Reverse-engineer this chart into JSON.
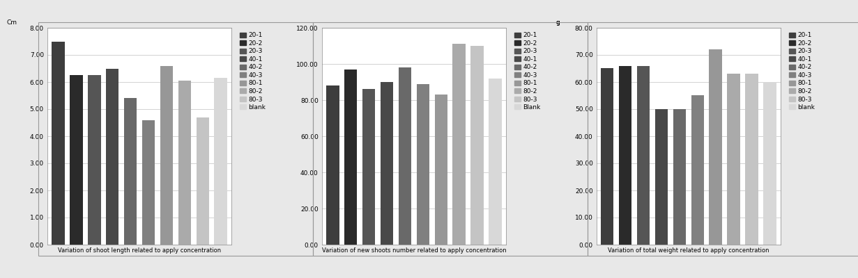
{
  "chart1": {
    "title": "Variation of shoot length related to apply concentration",
    "ylabel": "Cm",
    "ylim": [
      0,
      8.0
    ],
    "yticks": [
      0.0,
      1.0,
      2.0,
      3.0,
      4.0,
      5.0,
      6.0,
      7.0,
      8.0
    ],
    "ytick_labels": [
      "0.00",
      "1.00",
      "2.00",
      "3.00",
      "4.00",
      "5.00",
      "6.00",
      "7.00",
      "8.00"
    ],
    "bar_values": [
      7.5,
      6.25,
      6.25,
      6.5,
      5.4,
      4.6,
      6.6,
      6.05,
      4.7,
      6.15
    ]
  },
  "chart2": {
    "title": "Variation of new shoots number related to apply concentration",
    "ylim": [
      0,
      120.0
    ],
    "yticks": [
      0.0,
      20.0,
      40.0,
      60.0,
      80.0,
      100.0,
      120.0
    ],
    "ytick_labels": [
      "0.00",
      "20.00",
      "40.00",
      "60.00",
      "80.00",
      "100.00",
      "120.00"
    ],
    "bar_values": [
      88,
      97,
      86,
      90,
      98,
      89,
      83,
      111,
      110,
      92
    ],
    "legend_labels": [
      "20-1",
      "20-2",
      "20-3",
      "40-1",
      "40-2",
      "40-3",
      "80-1",
      "80-2",
      "80-3",
      "Blank"
    ]
  },
  "chart3": {
    "title": "Variation of total weight related to apply concentration",
    "ylabel": "g",
    "ylim": [
      0,
      80.0
    ],
    "yticks": [
      0.0,
      10.0,
      20.0,
      30.0,
      40.0,
      50.0,
      60.0,
      70.0,
      80.0
    ],
    "ytick_labels": [
      "0.00",
      "10.00",
      "20.00",
      "30.00",
      "40.00",
      "50.00",
      "60.00",
      "70.00",
      "80.00"
    ],
    "bar_values": [
      65,
      66,
      66,
      50,
      50,
      55,
      72,
      63,
      63,
      60
    ],
    "legend_labels": [
      "20-1",
      "20-2",
      "20-3",
      "40-1",
      "40-2",
      "40-3",
      "80-1",
      "80-2",
      "80-3",
      "blank"
    ]
  },
  "legend_labels": [
    "20-1",
    "20-2",
    "20-3",
    "40-1",
    "40-2",
    "40-3",
    "80-1",
    "80-2",
    "80-3",
    "blank"
  ],
  "colors": [
    "#3d3d3d",
    "#2a2a2a",
    "#555555",
    "#484848",
    "#696969",
    "#808080",
    "#979797",
    "#aaaaaa",
    "#c4c4c4",
    "#d8d8d8"
  ],
  "background_color": "#e8e8e8",
  "plot_bg": "#ffffff",
  "grid_color": "#c0c0c0",
  "box_edge_color": "#aaaaaa",
  "fontsize": 6.5,
  "title_fontsize": 6.0
}
